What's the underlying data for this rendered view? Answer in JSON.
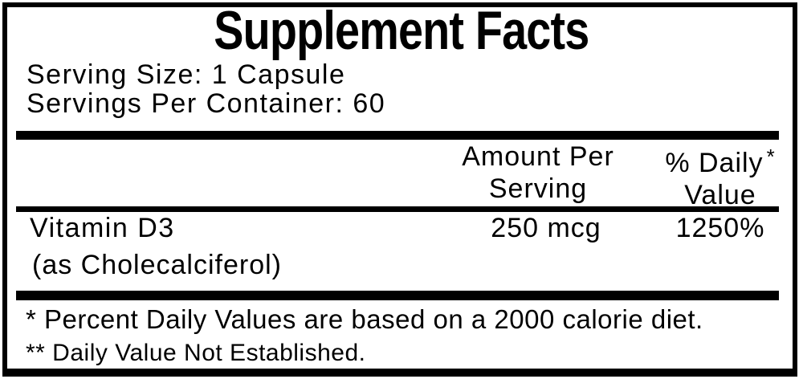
{
  "label": {
    "title": "Supplement Facts",
    "serving": {
      "size": "Serving Size: 1 Capsule",
      "per_container": "Servings Per Container: 60"
    },
    "table": {
      "headers": {
        "amount": [
          "Amount Per",
          "Serving"
        ],
        "daily_value": [
          "% Daily",
          "Value"
        ],
        "daily_value_asterisk": "*"
      },
      "rows": [
        {
          "name": "Vitamin D3",
          "detail": "(as Cholecalciferol)",
          "amount": "250 mcg",
          "daily_value": "1250%"
        }
      ]
    },
    "footnotes": [
      "* Percent Daily Values are based on a 2000 calorie diet.",
      "** Daily Value Not Established."
    ],
    "colors": {
      "text": "#000000",
      "background": "#ffffff",
      "border": "#000000"
    }
  }
}
